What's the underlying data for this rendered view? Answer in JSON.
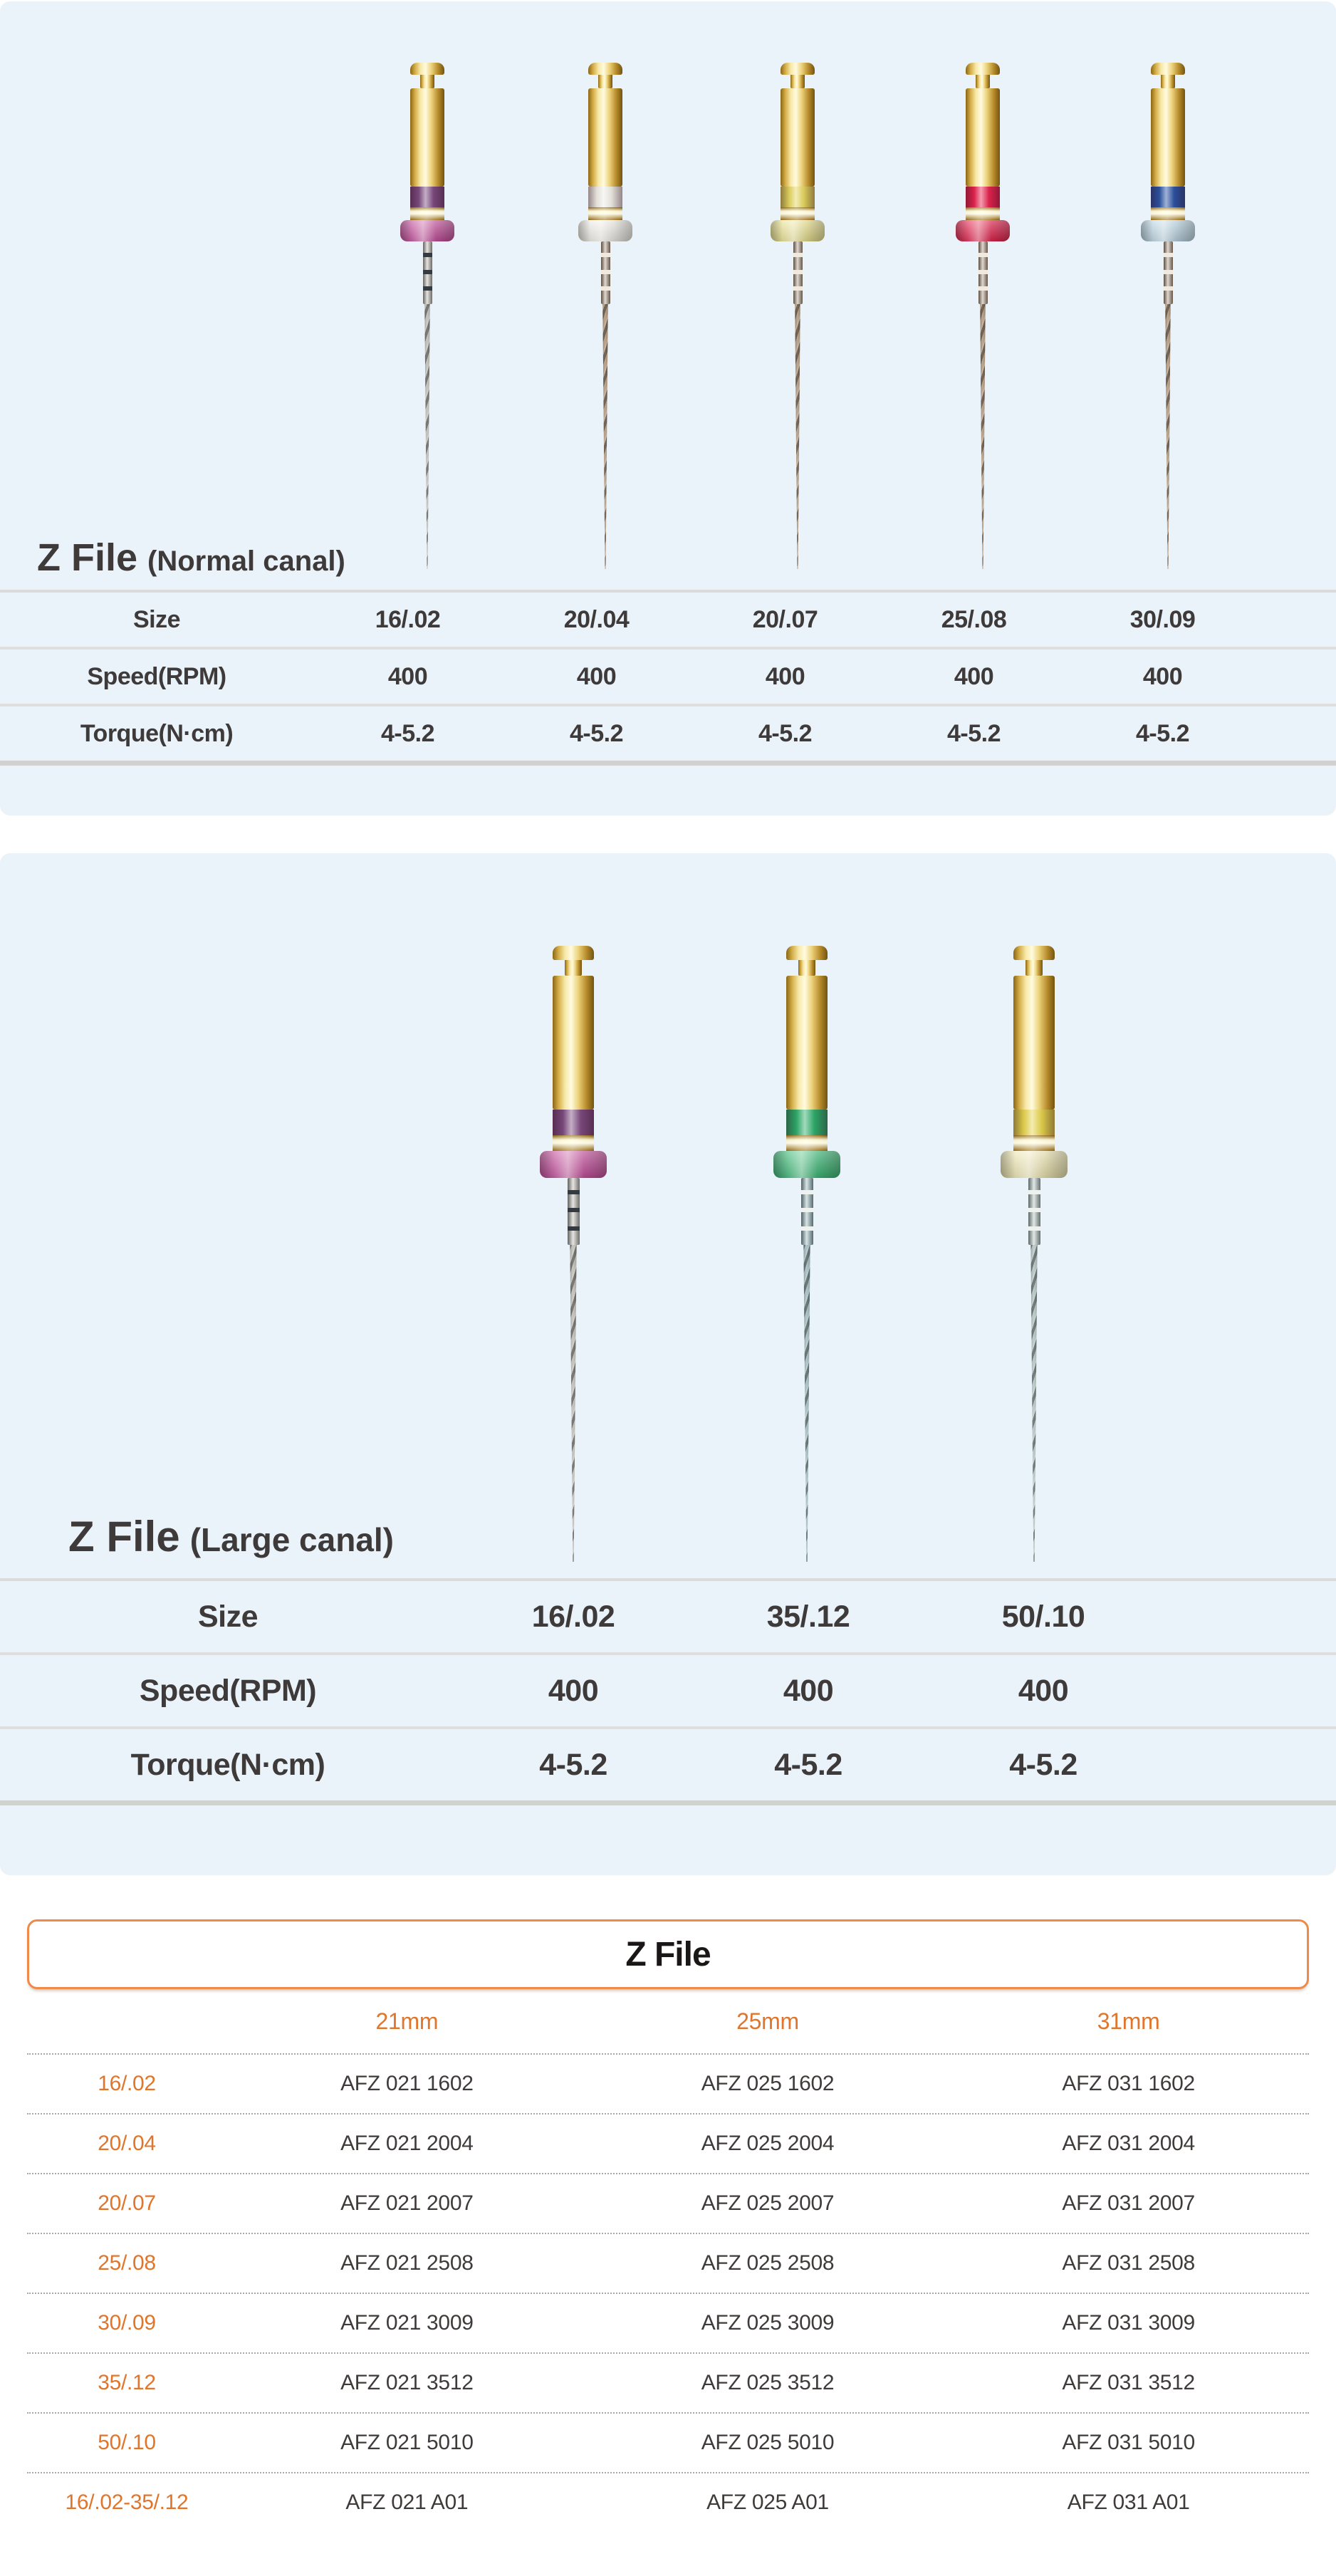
{
  "colors": {
    "panel_background": "#eaf2fa",
    "accent_orange": "#e0752c",
    "box_border_orange": "#ef8a4a",
    "table_text": "#3e3a39",
    "code_text": "#3f3b3a",
    "gold": "#d9b54a"
  },
  "sections": [
    {
      "title": "Z File",
      "subtitle": "(Normal canal)",
      "spec_rows": [
        {
          "label": "Size",
          "values": [
            "16/.02",
            "20/.04",
            "20/.07",
            "25/.08",
            "30/.09"
          ]
        },
        {
          "label": "Speed(RPM)",
          "values": [
            "400",
            "400",
            "400",
            "400",
            "400"
          ]
        },
        {
          "label": "Torque(N·cm)",
          "values": [
            "4-5.2",
            "4-5.2",
            "4-5.2",
            "4-5.2",
            "4-5.2"
          ]
        }
      ],
      "files": [
        {
          "size": "16/.02",
          "band_color": "#7d4b80",
          "disc_color": "#c8519f",
          "shaft": "silver"
        },
        {
          "size": "20/.04",
          "band_color": "#efece4",
          "disc_color": "#efede6",
          "shaft": "copper"
        },
        {
          "size": "20/.07",
          "band_color": "#e4d55e",
          "disc_color": "#ece491",
          "shaft": "copper"
        },
        {
          "size": "25/.08",
          "band_color": "#e6244e",
          "disc_color": "#e6244e",
          "shaft": "copper"
        },
        {
          "size": "30/.09",
          "band_color": "#2d54a3",
          "disc_color": "#bdd7e5",
          "shaft": "copper"
        }
      ]
    },
    {
      "title": "Z File",
      "subtitle": "(Large canal)",
      "spec_rows": [
        {
          "label": "Size",
          "values": [
            "16/.02",
            "35/.12",
            "50/.10"
          ]
        },
        {
          "label": "Speed(RPM)",
          "values": [
            "400",
            "400",
            "400"
          ]
        },
        {
          "label": "Torque(N·cm)",
          "values": [
            "4-5.2",
            "4-5.2",
            "4-5.2"
          ]
        }
      ],
      "files": [
        {
          "size": "16/.02",
          "band_color": "#7d4b80",
          "disc_color": "#c8519f",
          "shaft": "silver"
        },
        {
          "size": "35/.12",
          "band_color": "#2fae6c",
          "disc_color": "#3fbc79",
          "shaft": "teal"
        },
        {
          "size": "50/.10",
          "band_color": "#e6d44d",
          "disc_color": "#efe8b2",
          "shaft": "steel"
        }
      ]
    }
  ],
  "catalog": {
    "title": "Z File",
    "columns": [
      "21mm",
      "25mm",
      "31mm"
    ],
    "rows": [
      {
        "size": "16/.02",
        "codes": [
          "AFZ 021 1602",
          "AFZ 025 1602",
          "AFZ 031 1602"
        ]
      },
      {
        "size": "20/.04",
        "codes": [
          "AFZ 021 2004",
          "AFZ 025 2004",
          "AFZ 031 2004"
        ]
      },
      {
        "size": "20/.07",
        "codes": [
          "AFZ 021 2007",
          "AFZ 025 2007",
          "AFZ 031 2007"
        ]
      },
      {
        "size": "25/.08",
        "codes": [
          "AFZ 021 2508",
          "AFZ 025 2508",
          "AFZ 031 2508"
        ]
      },
      {
        "size": "30/.09",
        "codes": [
          "AFZ 021 3009",
          "AFZ 025 3009",
          "AFZ 031 3009"
        ]
      },
      {
        "size": "35/.12",
        "codes": [
          "AFZ 021 3512",
          "AFZ 025 3512",
          "AFZ 031 3512"
        ]
      },
      {
        "size": "50/.10",
        "codes": [
          "AFZ 021 5010",
          "AFZ 025 5010",
          "AFZ 031 5010"
        ]
      },
      {
        "size": "16/.02-35/.12",
        "codes": [
          "AFZ 021 A01",
          "AFZ 025 A01",
          "AFZ 031 A01"
        ]
      }
    ]
  }
}
